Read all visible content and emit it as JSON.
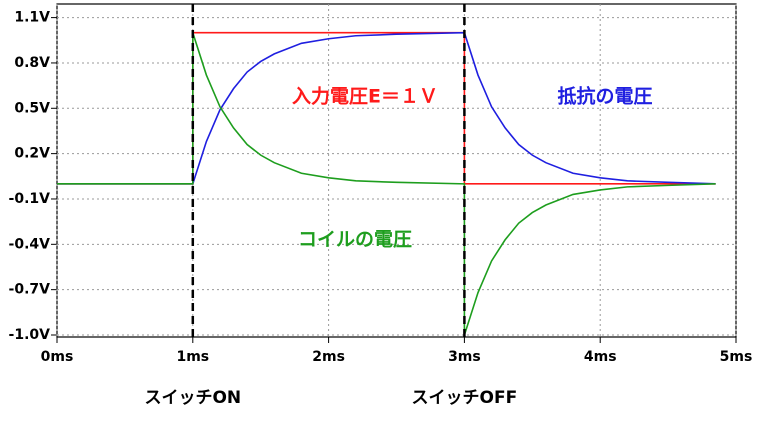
{
  "chart_data": {
    "type": "line",
    "xlim": [
      0,
      5
    ],
    "ylim": [
      -1.0,
      1.19
    ],
    "xticks": [
      {
        "value": 0,
        "label": "0ms"
      },
      {
        "value": 1,
        "label": "1ms"
      },
      {
        "value": 2,
        "label": "2ms"
      },
      {
        "value": 3,
        "label": "3ms"
      },
      {
        "value": 4,
        "label": "4ms"
      },
      {
        "value": 5,
        "label": "5ms"
      }
    ],
    "yticks": [
      {
        "value": 1.1,
        "label": "1.1V"
      },
      {
        "value": 0.8,
        "label": "0.8V"
      },
      {
        "value": 0.5,
        "label": "0.5V"
      },
      {
        "value": 0.2,
        "label": "0.2V"
      },
      {
        "value": -0.1,
        "label": "-0.1V"
      },
      {
        "value": -0.4,
        "label": "-0.4V"
      },
      {
        "value": -0.7,
        "label": "-0.7V"
      },
      {
        "value": -1.0,
        "label": "-1.0V"
      }
    ],
    "grid": true,
    "series": [
      {
        "name": "入力電圧E＝１Ｖ",
        "color": "#ff1a1a",
        "x": [
          0,
          1,
          1,
          3,
          3,
          4.85
        ],
        "values": [
          0,
          0,
          1,
          1,
          0,
          0
        ]
      },
      {
        "name": "抵抗の電圧",
        "color": "#1f1fe0",
        "x": [
          0,
          1,
          1.1,
          1.2,
          1.3,
          1.4,
          1.5,
          1.6,
          1.8,
          2.0,
          2.2,
          2.5,
          3.0,
          3.1,
          3.2,
          3.3,
          3.4,
          3.5,
          3.6,
          3.8,
          4.0,
          4.2,
          4.5,
          4.85
        ],
        "values": [
          0,
          0,
          0.28,
          0.49,
          0.63,
          0.74,
          0.81,
          0.86,
          0.93,
          0.96,
          0.98,
          0.99,
          1.0,
          0.72,
          0.51,
          0.37,
          0.26,
          0.19,
          0.14,
          0.07,
          0.04,
          0.02,
          0.01,
          0.0
        ]
      },
      {
        "name": "コイルの電圧",
        "color": "#1e9e1e",
        "x": [
          0,
          1,
          1,
          1.1,
          1.2,
          1.3,
          1.4,
          1.5,
          1.6,
          1.8,
          2.0,
          2.2,
          2.5,
          3.0,
          3.0,
          3.1,
          3.2,
          3.3,
          3.4,
          3.5,
          3.6,
          3.8,
          4.0,
          4.2,
          4.5,
          4.85
        ],
        "values": [
          0,
          0,
          1.0,
          0.72,
          0.51,
          0.37,
          0.26,
          0.19,
          0.14,
          0.07,
          0.04,
          0.02,
          0.01,
          0.0,
          -1.0,
          -0.72,
          -0.51,
          -0.37,
          -0.26,
          -0.19,
          -0.14,
          -0.07,
          -0.04,
          -0.02,
          -0.01,
          0.0
        ]
      }
    ],
    "switch_lines": [
      {
        "x": 1,
        "label": "スイッチON"
      },
      {
        "x": 3,
        "label": "スイッチOFF"
      }
    ]
  }
}
